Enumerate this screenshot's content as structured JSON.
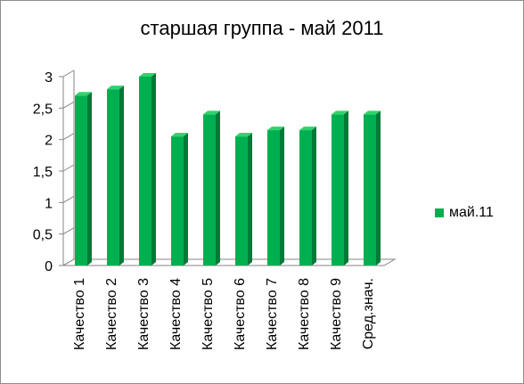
{
  "chart_data": {
    "type": "bar",
    "title": "старшая группа - май 2011",
    "categories": [
      "Качество 1",
      "Качество 2",
      "Качество 3",
      "Качество 4",
      "Качество 5",
      "Качество 6",
      "Качество 7",
      "Качество 8",
      "Качество 9",
      "Сред.знач."
    ],
    "series": [
      {
        "name": "май.11",
        "values": [
          2.7,
          2.8,
          3.0,
          2.05,
          2.4,
          2.05,
          2.15,
          2.15,
          2.4,
          2.4
        ],
        "color": "#00b050"
      }
    ],
    "ylim": [
      0,
      3
    ],
    "yticks": [
      "0",
      "0,5",
      "1",
      "1,5",
      "2",
      "2,5",
      "3"
    ],
    "grid": false,
    "legend": "right"
  }
}
